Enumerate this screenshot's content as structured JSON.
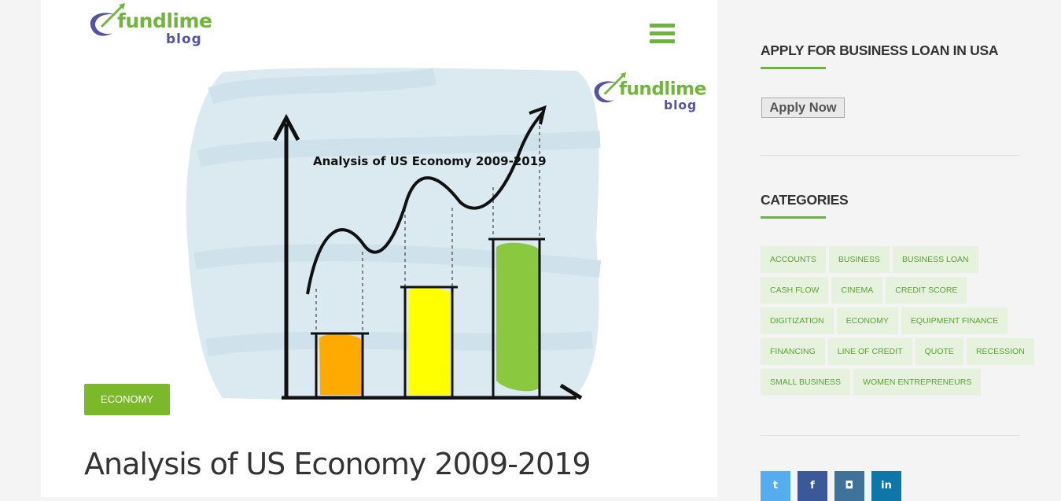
{
  "header": {
    "logo": {
      "word": "fundlime",
      "sub": "blog"
    },
    "menu_icon": "hamburger-icon"
  },
  "hero": {
    "image_title": "Analysis of US Economy 2009-2019",
    "watermark_logo": {
      "word": "fundlime",
      "sub": "blog"
    },
    "bar_colors": [
      "#ffaa00",
      "#ffff00",
      "#8ac840"
    ]
  },
  "post": {
    "category_badge": "ECONOMY",
    "title": "Analysis of US Economy 2009-2019"
  },
  "sidebar": {
    "apply_widget": {
      "title": "APPLY FOR BUSINESS LOAN IN USA",
      "button_label": "Apply Now"
    },
    "categories_widget": {
      "title": "CATEGORIES",
      "tags": [
        [
          "ACCOUNTS",
          "BUSINESS",
          "BUSINESS LOAN"
        ],
        [
          "CASH FLOW",
          "CINEMA",
          "CREDIT SCORE"
        ],
        [
          "DIGITIZATION",
          "ECONOMY",
          "EQUIPMENT FINANCE"
        ],
        [
          "FINANCING",
          "LINE OF CREDIT",
          "QUOTE",
          "RECESSION"
        ],
        [
          "SMALL BUSINESS",
          "WOMEN ENTREPRENEURS"
        ]
      ]
    },
    "social": [
      {
        "name": "twitter",
        "glyph": "t",
        "color": "#55acee",
        "icon": "twitter-icon"
      },
      {
        "name": "facebook",
        "glyph": "f",
        "color": "#3b5998",
        "icon": "facebook-icon"
      },
      {
        "name": "instagram",
        "glyph": "◘",
        "color": "#3f729b",
        "icon": "instagram-icon"
      },
      {
        "name": "linkedin",
        "glyph": "in",
        "color": "#0e76a8",
        "icon": "linkedin-icon"
      }
    ]
  },
  "colors": {
    "accent": "#6db33f",
    "badge": "#7bb82a",
    "tag_bg": "#e6f1de"
  }
}
